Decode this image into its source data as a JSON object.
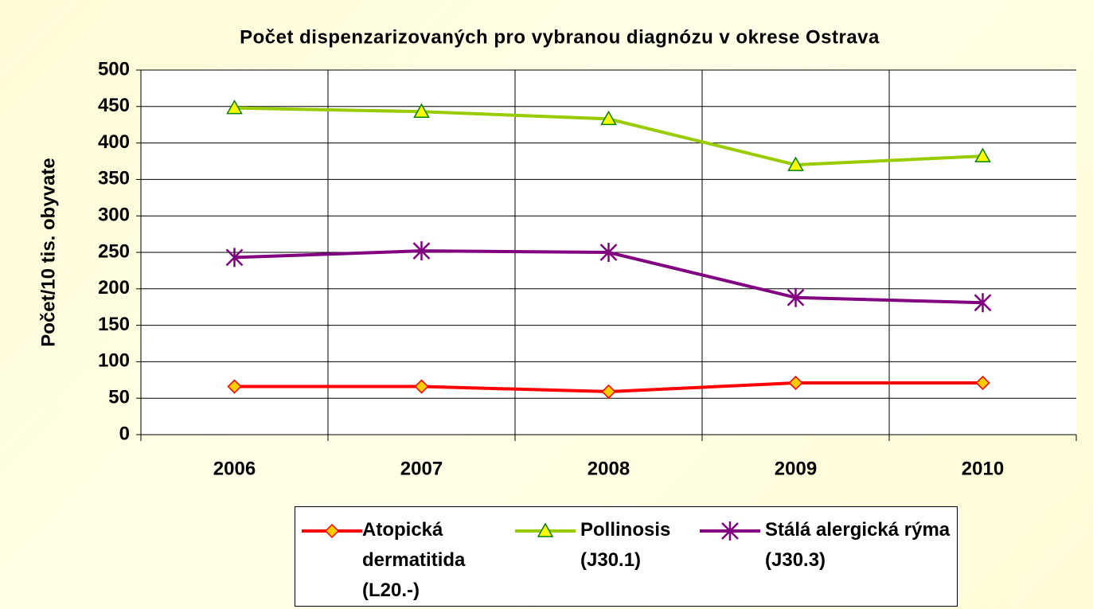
{
  "chart_data": {
    "type": "line",
    "title": "Počet dispenzarizovaných pro vybranou diagnózu v okrese Ostrava",
    "y_label": "Počet/10 tis. obyvate",
    "categories": [
      "2006",
      "2007",
      "2008",
      "2009",
      "2010"
    ],
    "series": [
      {
        "name": "Atopická dermatitida (L20.-)",
        "color": "#ff0000",
        "marker": "diamond",
        "values": [
          66,
          66,
          59,
          71,
          71
        ]
      },
      {
        "name": "Pollinosis (J30.1)",
        "color": "#99cc00",
        "marker": "triangle",
        "values": [
          448,
          443,
          433,
          370,
          382
        ]
      },
      {
        "name": "Stálá alergická rýma (J30.3)",
        "color": "#800080",
        "marker": "star",
        "values": [
          243,
          252,
          250,
          188,
          181
        ]
      }
    ],
    "ylim": [
      0,
      500
    ],
    "yticks": [
      0,
      50,
      100,
      150,
      200,
      250,
      300,
      350,
      400,
      450,
      500
    ],
    "grid": true,
    "legend": "bottom"
  }
}
